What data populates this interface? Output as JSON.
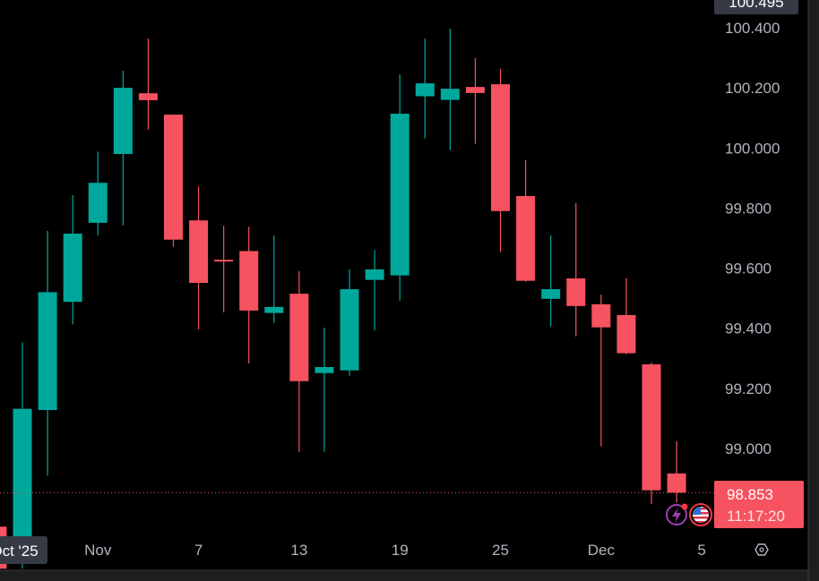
{
  "chart_data": {
    "type": "candlestick",
    "title": "",
    "xlabel": "",
    "ylabel": "",
    "ylim": [
      98.63,
      100.495
    ],
    "grid": false,
    "up_color": "#089981",
    "up_body_color": "#00a89c",
    "down_color": "#f7525f",
    "y_ticks": [
      "100.400",
      "100.200",
      "100.000",
      "99.800",
      "99.600",
      "99.400",
      "99.200",
      "99.000"
    ],
    "y_tick_values": [
      100.4,
      100.2,
      100.0,
      99.8,
      99.6,
      99.4,
      99.2,
      99.0
    ],
    "x_ticks": [
      {
        "index": 1,
        "label": "Oct '25",
        "highlighted": true
      },
      {
        "index": 4,
        "label": "Nov"
      },
      {
        "index": 8,
        "label": "7"
      },
      {
        "index": 12,
        "label": "13"
      },
      {
        "index": 16,
        "label": "19"
      },
      {
        "index": 20,
        "label": "25"
      },
      {
        "index": 24,
        "label": "Dec"
      },
      {
        "index": 28,
        "label": "5"
      }
    ],
    "candles": [
      {
        "o": 98.74,
        "h": 98.75,
        "l": 98.55,
        "c": 98.6
      },
      {
        "o": 98.64,
        "h": 99.353,
        "l": 98.6,
        "c": 99.132
      },
      {
        "o": 99.128,
        "h": 99.724,
        "l": 98.91,
        "c": 99.52
      },
      {
        "o": 99.488,
        "h": 99.843,
        "l": 99.413,
        "c": 99.715
      },
      {
        "o": 99.751,
        "h": 99.988,
        "l": 99.709,
        "c": 99.884
      },
      {
        "o": 99.98,
        "h": 100.257,
        "l": 99.742,
        "c": 100.2
      },
      {
        "o": 100.182,
        "h": 100.364,
        "l": 100.061,
        "c": 100.159
      },
      {
        "o": 100.111,
        "h": 100.111,
        "l": 99.671,
        "c": 99.695
      },
      {
        "o": 99.759,
        "h": 99.872,
        "l": 99.396,
        "c": 99.551
      },
      {
        "o": 99.628,
        "h": 99.741,
        "l": 99.453,
        "c": 99.622
      },
      {
        "o": 99.657,
        "h": 99.738,
        "l": 99.283,
        "c": 99.459
      },
      {
        "o": 99.451,
        "h": 99.709,
        "l": 99.418,
        "c": 99.471
      },
      {
        "o": 99.515,
        "h": 99.59,
        "l": 98.989,
        "c": 99.224
      },
      {
        "o": 99.251,
        "h": 99.402,
        "l": 98.989,
        "c": 99.271
      },
      {
        "o": 99.26,
        "h": 99.596,
        "l": 99.242,
        "c": 99.53
      },
      {
        "o": 99.561,
        "h": 99.661,
        "l": 99.393,
        "c": 99.596
      },
      {
        "o": 99.576,
        "h": 100.245,
        "l": 99.492,
        "c": 100.114
      },
      {
        "o": 100.172,
        "h": 100.364,
        "l": 100.032,
        "c": 100.215
      },
      {
        "o": 100.16,
        "h": 100.397,
        "l": 99.993,
        "c": 100.197
      },
      {
        "o": 100.203,
        "h": 100.299,
        "l": 100.014,
        "c": 100.183
      },
      {
        "o": 100.212,
        "h": 100.263,
        "l": 99.653,
        "c": 99.79
      },
      {
        "o": 99.84,
        "h": 99.959,
        "l": 99.555,
        "c": 99.558
      },
      {
        "o": 99.498,
        "h": 99.709,
        "l": 99.406,
        "c": 99.53
      },
      {
        "o": 99.566,
        "h": 99.816,
        "l": 99.373,
        "c": 99.474
      },
      {
        "o": 99.48,
        "h": 99.512,
        "l": 99.007,
        "c": 99.403
      },
      {
        "o": 99.444,
        "h": 99.566,
        "l": 99.314,
        "c": 99.317
      },
      {
        "o": 99.28,
        "h": 99.286,
        "l": 98.816,
        "c": 98.861
      },
      {
        "o": 98.917,
        "h": 99.024,
        "l": 98.82,
        "c": 98.853
      }
    ],
    "crosshair_price_label": "100.495",
    "last_price": 98.853,
    "last_price_label": "98.853",
    "countdown_label": "11:17:20"
  },
  "icons": {
    "event_icon": "lightning-icon",
    "country_icon": "us-flag-icon",
    "settings_icon": "settings-hexagon-icon"
  }
}
